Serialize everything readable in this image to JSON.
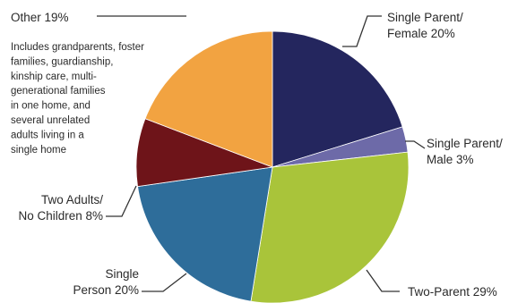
{
  "chart_data": {
    "type": "pie",
    "slices": [
      {
        "label_lines": [
          "Single Parent/",
          "Female 20%"
        ],
        "value": 20,
        "color": "#24265e"
      },
      {
        "label_lines": [
          "Single Parent/",
          "Male 3%"
        ],
        "value": 3,
        "color": "#6d6aa8"
      },
      {
        "label_lines": [
          "Two-Parent 29%"
        ],
        "value": 29,
        "color": "#a9c43a"
      },
      {
        "label_lines": [
          "Single",
          "Person 20%"
        ],
        "value": 20,
        "color": "#2e6d9a"
      },
      {
        "label_lines": [
          "Two Adults/",
          "No Children 8%"
        ],
        "value": 8,
        "color": "#6e1419"
      },
      {
        "label_lines": [
          "Other 19%"
        ],
        "value": 19,
        "color": "#f2a341"
      }
    ],
    "other_note_lines": [
      "Includes grandparents, foster",
      "families, guardianship,",
      "kinship care, multi-",
      "generational families",
      "in one home, and",
      "several unrelated",
      "adults living in a",
      "single home"
    ]
  }
}
